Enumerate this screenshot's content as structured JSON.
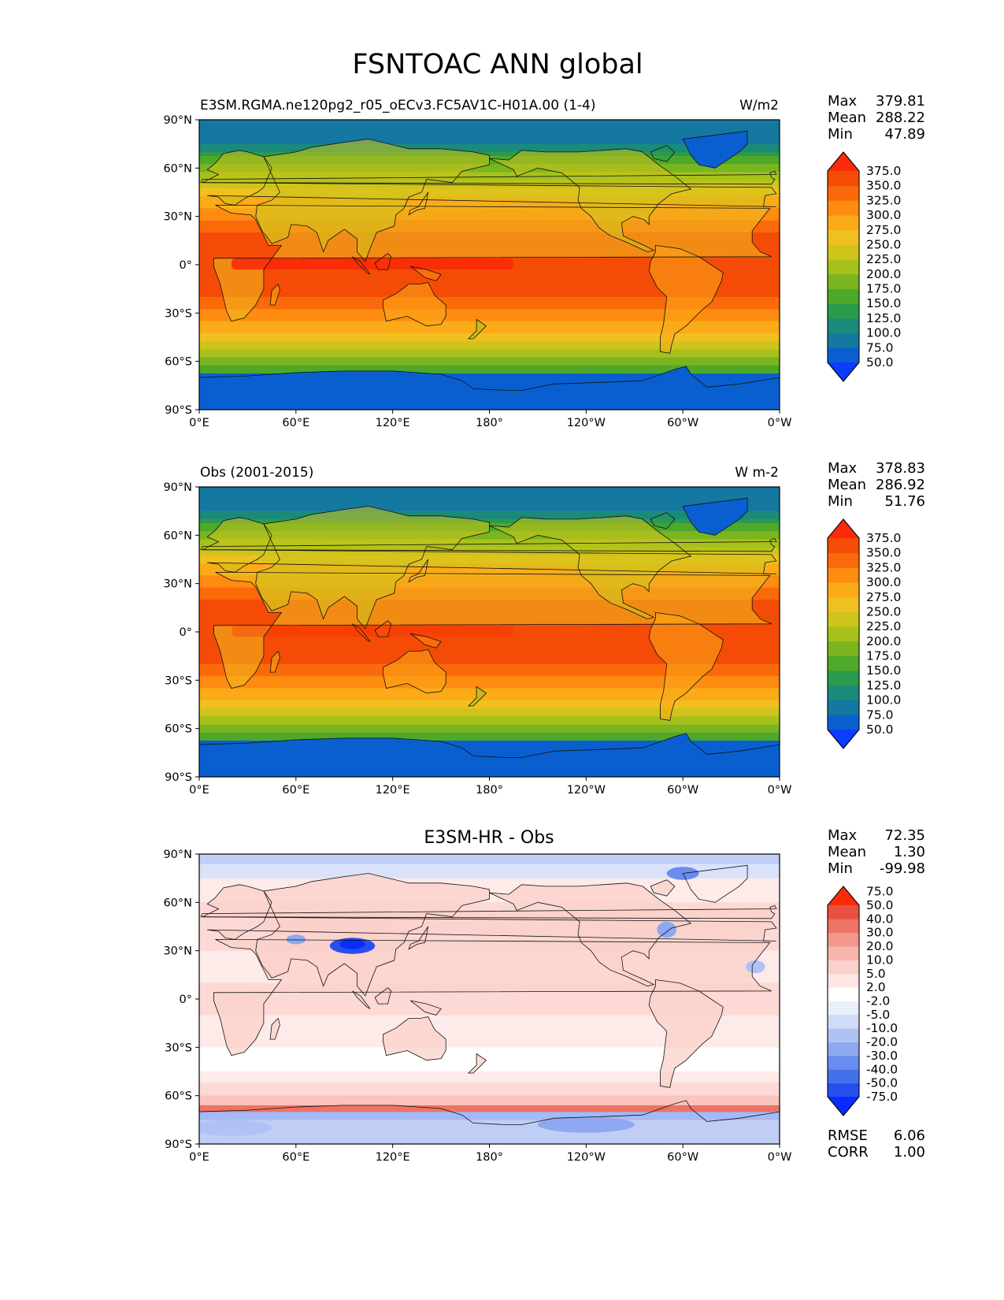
{
  "figure": {
    "title": "FSNTOAC ANN global"
  },
  "axes": {
    "lat_ticks": [
      "90°N",
      "60°N",
      "30°N",
      "0°",
      "30°S",
      "60°S",
      "90°S"
    ],
    "lon_ticks": [
      "0°E",
      "60°E",
      "120°E",
      "180°",
      "120°W",
      "60°W",
      "0°W"
    ]
  },
  "colors": {
    "seq": [
      "#0c3cff",
      "#0a5fd0",
      "#1478a0",
      "#1a8a7a",
      "#2b9a4a",
      "#4ea82a",
      "#7ab520",
      "#a7c11c",
      "#cfc41c",
      "#f0c020",
      "#fbaa18",
      "#fd8c10",
      "#fb6a0a",
      "#f44c06",
      "#fc2a08"
    ],
    "diff": [
      "#0a2bff",
      "#2450f0",
      "#4470ea",
      "#6a8cee",
      "#8ea8f1",
      "#b0c2f4",
      "#d0dbf8",
      "#eaf0fb",
      "#ffffff",
      "#fde6e3",
      "#fbd0ca",
      "#f8b5ac",
      "#f3968b",
      "#ee7565",
      "#e95040",
      "#fc2a08"
    ]
  },
  "chart_data": [
    {
      "type": "heatmap",
      "panel": "test",
      "title": "E3SM.RGMA.ne120pg2_r05_oECv3.FC5AV1C-H01A.00 (1-4)",
      "units": "W/m2",
      "xlim": [
        0,
        360
      ],
      "ylim": [
        -90,
        90
      ],
      "stats": {
        "max_label": "Max",
        "max": "379.81",
        "mean_label": "Mean",
        "mean": "288.22",
        "min_label": "Min",
        "min": "47.89"
      },
      "levels": [
        "50.0",
        "75.0",
        "100.0",
        "125.0",
        "150.0",
        "175.0",
        "200.0",
        "225.0",
        "250.0",
        "275.0",
        "300.0",
        "325.0",
        "350.0",
        "375.0"
      ],
      "colorbar_extend": "both"
    },
    {
      "type": "heatmap",
      "panel": "reference",
      "title": "Obs (2001-2015)",
      "units": "W m-2",
      "xlim": [
        0,
        360
      ],
      "ylim": [
        -90,
        90
      ],
      "stats": {
        "max_label": "Max",
        "max": "378.83",
        "mean_label": "Mean",
        "mean": "286.92",
        "min_label": "Min",
        "min": "51.76"
      },
      "levels": [
        "50.0",
        "75.0",
        "100.0",
        "125.0",
        "150.0",
        "175.0",
        "200.0",
        "225.0",
        "250.0",
        "275.0",
        "300.0",
        "325.0",
        "350.0",
        "375.0"
      ],
      "colorbar_extend": "both"
    },
    {
      "type": "heatmap",
      "panel": "difference",
      "title": "E3SM-HR - Obs",
      "units": "",
      "xlim": [
        0,
        360
      ],
      "ylim": [
        -90,
        90
      ],
      "stats": {
        "max_label": "Max",
        "max": "72.35",
        "mean_label": "Mean",
        "mean": "1.30",
        "min_label": "Min",
        "min": "-99.98"
      },
      "levels": [
        "-75.0",
        "-50.0",
        "-40.0",
        "-30.0",
        "-20.0",
        "-10.0",
        "-5.0",
        "-2.0",
        "2.0",
        "5.0",
        "10.0",
        "20.0",
        "30.0",
        "40.0",
        "50.0",
        "75.0"
      ],
      "colorbar_extend": "both",
      "rmse_label": "RMSE",
      "rmse": "6.06",
      "corr_label": "CORR",
      "corr": "1.00"
    }
  ]
}
